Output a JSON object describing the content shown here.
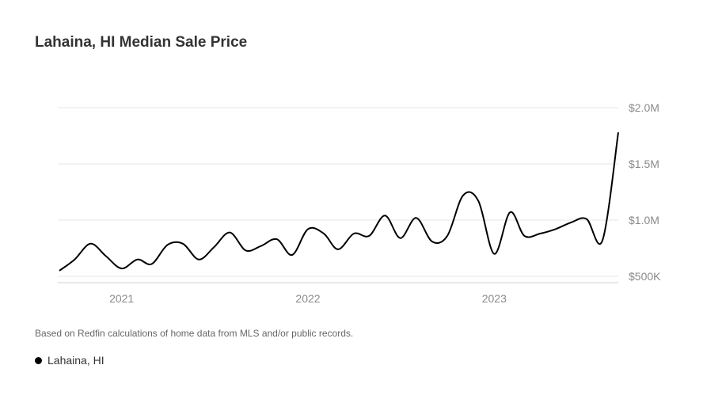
{
  "page": {
    "title": "Lahaina, HI Median Sale Price",
    "note": "Based on Redfin calculations of home data from MLS and/or public records."
  },
  "chart_data": {
    "type": "line",
    "title": "Lahaina, HI Median Sale Price",
    "xlabel": "",
    "ylabel": "",
    "x_ticks": [
      {
        "label": "2021",
        "date": "2021-01-01"
      },
      {
        "label": "2022",
        "date": "2022-01-01"
      },
      {
        "label": "2023",
        "date": "2023-01-01"
      }
    ],
    "y_ticks": [
      {
        "label": "$500K",
        "value": 500000
      },
      {
        "label": "$1.0M",
        "value": 1000000
      },
      {
        "label": "$1.5M",
        "value": 1500000
      },
      {
        "label": "$2.0M",
        "value": 2000000
      }
    ],
    "xlim": [
      "2020-09-01",
      "2023-08-01"
    ],
    "ylim": [
      500000,
      2000000
    ],
    "grid": true,
    "legend": "bottom-left",
    "series": [
      {
        "name": "Lahaina, HI",
        "color": "#000000",
        "points": [
          [
            "2020-09",
            550000
          ],
          [
            "2020-10",
            650000
          ],
          [
            "2020-11",
            790000
          ],
          [
            "2020-12",
            680000
          ],
          [
            "2021-01",
            570000
          ],
          [
            "2021-02",
            650000
          ],
          [
            "2021-03",
            610000
          ],
          [
            "2021-04",
            780000
          ],
          [
            "2021-05",
            790000
          ],
          [
            "2021-06",
            650000
          ],
          [
            "2021-07",
            760000
          ],
          [
            "2021-08",
            890000
          ],
          [
            "2021-09",
            730000
          ],
          [
            "2021-10",
            770000
          ],
          [
            "2021-11",
            830000
          ],
          [
            "2021-12",
            690000
          ],
          [
            "2022-01",
            920000
          ],
          [
            "2022-02",
            880000
          ],
          [
            "2022-03",
            740000
          ],
          [
            "2022-04",
            880000
          ],
          [
            "2022-05",
            860000
          ],
          [
            "2022-06",
            1040000
          ],
          [
            "2022-07",
            840000
          ],
          [
            "2022-08",
            1020000
          ],
          [
            "2022-09",
            810000
          ],
          [
            "2022-10",
            860000
          ],
          [
            "2022-11",
            1220000
          ],
          [
            "2022-12",
            1170000
          ],
          [
            "2023-01",
            700000
          ],
          [
            "2023-02",
            1070000
          ],
          [
            "2023-03",
            860000
          ],
          [
            "2023-04",
            880000
          ],
          [
            "2023-05",
            920000
          ],
          [
            "2023-06",
            980000
          ],
          [
            "2023-07",
            1010000
          ],
          [
            "2023-08",
            820000
          ],
          [
            "2023-09",
            1780000
          ]
        ]
      }
    ]
  }
}
